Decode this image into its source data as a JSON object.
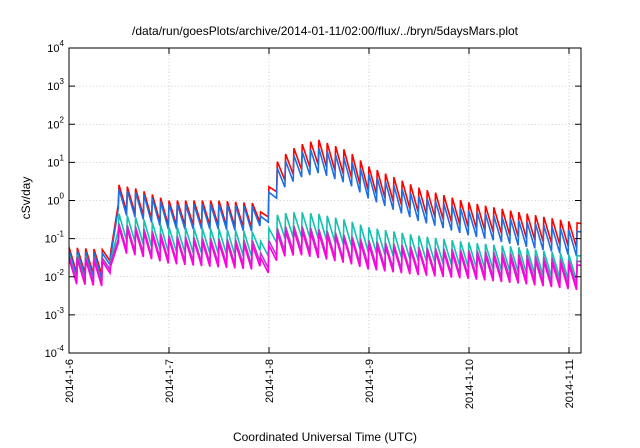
{
  "chart_data": {
    "type": "line",
    "title": "/data/run/goesPlots/archive/2014-01-11/02:00/flux/../bryn/5daysMars.plot",
    "xlabel": "Coordinated Universal Time (UTC)",
    "ylabel": "cSv/day",
    "y_scale": "log",
    "ylim": [
      0.0001,
      10000
    ],
    "xlim": [
      0,
      5.12
    ],
    "x_unit": "days since 2014-1-6 00:00",
    "grid": true,
    "legend": "none",
    "x_ticks": [
      {
        "value": 0,
        "label": "2014-1-6"
      },
      {
        "value": 1,
        "label": "2014-1-7"
      },
      {
        "value": 2,
        "label": "2014-1-8"
      },
      {
        "value": 3,
        "label": "2014-1-9"
      },
      {
        "value": 4,
        "label": "2014-1-10"
      },
      {
        "value": 5,
        "label": "2014-1-11"
      }
    ],
    "y_ticks": [
      {
        "value": 0.0001,
        "base": "10",
        "exp": "-4"
      },
      {
        "value": 0.001,
        "base": "10",
        "exp": "-3"
      },
      {
        "value": 0.01,
        "base": "10",
        "exp": "-2"
      },
      {
        "value": 0.1,
        "base": "10",
        "exp": "-1"
      },
      {
        "value": 1,
        "base": "10",
        "exp": "0"
      },
      {
        "value": 10,
        "base": "10",
        "exp": "1"
      },
      {
        "value": 100,
        "base": "10",
        "exp": "2"
      },
      {
        "value": 1000,
        "base": "10",
        "exp": "3"
      },
      {
        "value": 10000,
        "base": "10",
        "exp": "4"
      }
    ],
    "oscillation": {
      "period_days": 0.0833,
      "trough_ratio": 0.22,
      "step_times": [
        0.45,
        1.93
      ],
      "step_floor_ratio": 0.55
    },
    "series": [
      {
        "name": "",
        "color": "#ff0000",
        "envelope": [
          [
            0,
            0.06
          ],
          [
            0.4,
            0.05
          ],
          [
            0.45,
            0.04
          ],
          [
            0.5,
            2.6
          ],
          [
            0.7,
            2.0
          ],
          [
            1.0,
            1.0
          ],
          [
            1.5,
            1.0
          ],
          [
            1.85,
            0.85
          ],
          [
            1.92,
            0.45
          ],
          [
            2.1,
            12
          ],
          [
            2.3,
            28
          ],
          [
            2.5,
            40
          ],
          [
            2.8,
            20
          ],
          [
            3.0,
            8
          ],
          [
            3.5,
            2.2
          ],
          [
            4.0,
            0.9
          ],
          [
            4.5,
            0.5
          ],
          [
            5.12,
            0.25
          ]
        ]
      },
      {
        "name": "",
        "color": "#1f6fe0",
        "envelope": [
          [
            0,
            0.05
          ],
          [
            0.4,
            0.04
          ],
          [
            0.45,
            0.03
          ],
          [
            0.5,
            2.0
          ],
          [
            0.7,
            1.6
          ],
          [
            1.0,
            0.8
          ],
          [
            1.5,
            0.8
          ],
          [
            1.85,
            0.7
          ],
          [
            1.92,
            0.35
          ],
          [
            2.1,
            8
          ],
          [
            2.3,
            18
          ],
          [
            2.5,
            24
          ],
          [
            2.8,
            12
          ],
          [
            3.0,
            5
          ],
          [
            3.5,
            1.3
          ],
          [
            4.0,
            0.55
          ],
          [
            4.5,
            0.3
          ],
          [
            5.12,
            0.15
          ]
        ]
      },
      {
        "name": "",
        "color": "#14c1b0",
        "envelope": [
          [
            0,
            0.04
          ],
          [
            0.4,
            0.03
          ],
          [
            0.45,
            0.025
          ],
          [
            0.5,
            0.45
          ],
          [
            0.7,
            0.35
          ],
          [
            1.0,
            0.2
          ],
          [
            1.5,
            0.18
          ],
          [
            1.85,
            0.15
          ],
          [
            1.92,
            0.08
          ],
          [
            2.1,
            0.45
          ],
          [
            2.3,
            0.5
          ],
          [
            2.5,
            0.45
          ],
          [
            2.8,
            0.3
          ],
          [
            3.0,
            0.2
          ],
          [
            3.5,
            0.12
          ],
          [
            4.0,
            0.08
          ],
          [
            4.5,
            0.06
          ],
          [
            5.12,
            0.035
          ]
        ]
      },
      {
        "name": "",
        "color": "#b040c0",
        "envelope": [
          [
            0,
            0.035
          ],
          [
            0.4,
            0.03
          ],
          [
            0.45,
            0.02
          ],
          [
            0.5,
            0.25
          ],
          [
            0.7,
            0.2
          ],
          [
            1.0,
            0.12
          ],
          [
            1.5,
            0.1
          ],
          [
            1.85,
            0.09
          ],
          [
            1.92,
            0.04
          ],
          [
            2.1,
            0.2
          ],
          [
            2.3,
            0.22
          ],
          [
            2.5,
            0.18
          ],
          [
            2.8,
            0.12
          ],
          [
            3.0,
            0.09
          ],
          [
            3.5,
            0.06
          ],
          [
            4.0,
            0.05
          ],
          [
            4.5,
            0.04
          ],
          [
            5.12,
            0.025
          ]
        ]
      },
      {
        "name": "",
        "color": "#ff00e0",
        "envelope": [
          [
            0,
            0.03
          ],
          [
            0.4,
            0.025
          ],
          [
            0.45,
            0.015
          ],
          [
            0.5,
            0.2
          ],
          [
            0.7,
            0.16
          ],
          [
            1.0,
            0.1
          ],
          [
            1.5,
            0.08
          ],
          [
            1.85,
            0.07
          ],
          [
            1.92,
            0.03
          ],
          [
            2.1,
            0.15
          ],
          [
            2.3,
            0.17
          ],
          [
            2.5,
            0.14
          ],
          [
            2.8,
            0.1
          ],
          [
            3.0,
            0.07
          ],
          [
            3.5,
            0.05
          ],
          [
            4.0,
            0.04
          ],
          [
            4.5,
            0.03
          ],
          [
            5.12,
            0.02
          ]
        ]
      }
    ]
  }
}
